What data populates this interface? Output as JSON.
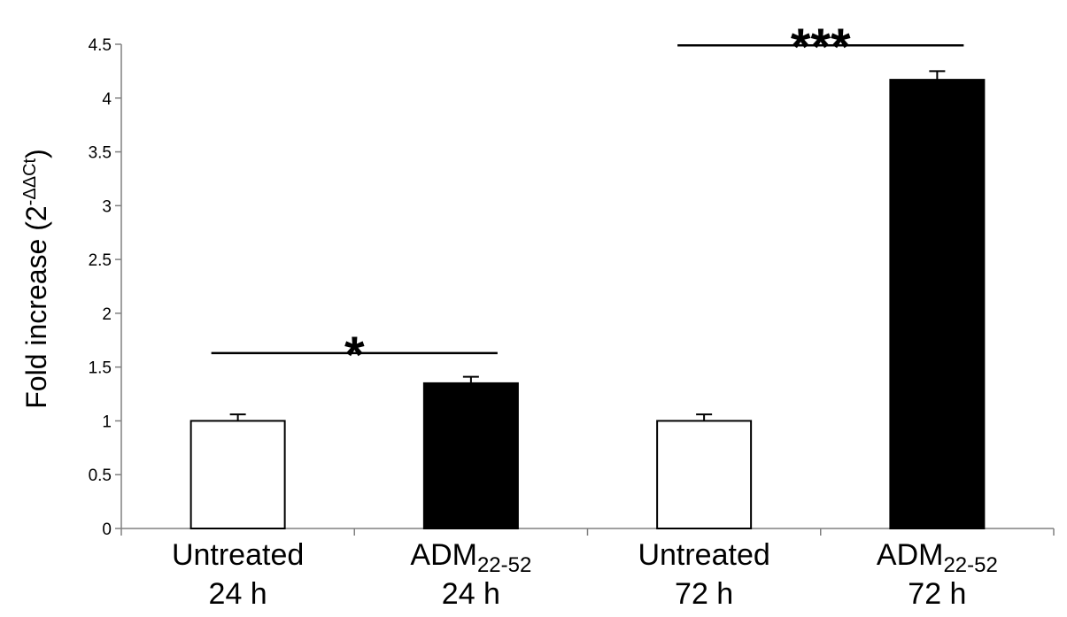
{
  "chart_data": {
    "type": "bar",
    "categories": [
      {
        "line1": "Untreated",
        "line1_sub": "",
        "line2": "24 h"
      },
      {
        "line1": "ADM",
        "line1_sub": "22-52",
        "line2": "24 h"
      },
      {
        "line1": "Untreated",
        "line1_sub": "",
        "line2": "72 h"
      },
      {
        "line1": "ADM",
        "line1_sub": "22-52",
        "line2": "72 h"
      }
    ],
    "values": [
      1.0,
      1.35,
      1.0,
      4.17
    ],
    "errors": [
      0.06,
      0.06,
      0.06,
      0.08
    ],
    "bar_colors": [
      "#ffffff",
      "#000000",
      "#ffffff",
      "#000000"
    ],
    "ylabel": "Fold increase (2",
    "ylabel_superscript": "-ΔΔCt",
    "ylabel_close": ")",
    "ylim": [
      0,
      4.5
    ],
    "yticks": [
      "0",
      "0.5",
      "1",
      "1.5",
      "2",
      "2.5",
      "3",
      "3.5",
      "4",
      "4.5"
    ],
    "grid": false,
    "significance": [
      {
        "from": 0,
        "to": 1,
        "y": 1.63,
        "label": "*"
      },
      {
        "from": 2,
        "to": 3,
        "y": 4.49,
        "label": "***"
      }
    ]
  }
}
